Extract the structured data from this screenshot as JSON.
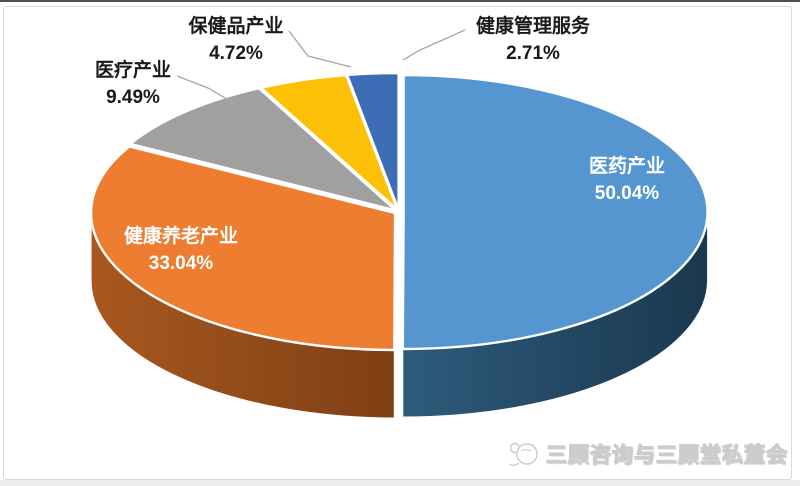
{
  "frame": {
    "top_rule_color": "#4f4f4f",
    "card_border_color": "#d9d9d9",
    "bottom_strip_color": "#ececec",
    "background_color": "#ffffff"
  },
  "chart_data": {
    "type": "pie",
    "style": "3d-exploded",
    "direction": "clockwise",
    "start_angle": "12-oclock",
    "unit": "%",
    "legend": "none",
    "title": "",
    "slices": [
      {
        "label": "医药产业",
        "value": 50.04,
        "pct_label": "50.04%",
        "color": "#5596D0",
        "wall_colors": [
          "#2E5B7C",
          "#1A384F"
        ],
        "label_placement": "inside"
      },
      {
        "label": "健康养老产业",
        "value": 33.04,
        "pct_label": "33.04%",
        "color": "#ED7D31",
        "wall_colors": [
          "#A8581F",
          "#7E3F14"
        ],
        "label_placement": "inside"
      },
      {
        "label": "医疗产业",
        "value": 9.49,
        "pct_label": "9.49%",
        "color": "#A0A0A0",
        "wall_colors": null,
        "label_placement": "outside-callout"
      },
      {
        "label": "保健品产业",
        "value": 4.72,
        "pct_label": "4.72%",
        "color": "#FCC006",
        "wall_colors": null,
        "label_placement": "outside-callout"
      },
      {
        "label": "健康管理服务",
        "value": 2.71,
        "pct_label": "2.71%",
        "color": "#3D6EB5",
        "wall_colors": null,
        "label_placement": "outside-callout"
      }
    ],
    "leader_line_color": "#A6A6A6",
    "outside_label_text_color": "#1A1A1A",
    "inside_label_text_color": "#FFFFFF",
    "slice_separator_color": "#FFFFFF"
  },
  "watermark": {
    "text": "三顾咨询与三顾堂私董会",
    "icon": "scribble-logo-icon",
    "text_color": "#fdfdfd",
    "outline_color": "#cccccc"
  }
}
